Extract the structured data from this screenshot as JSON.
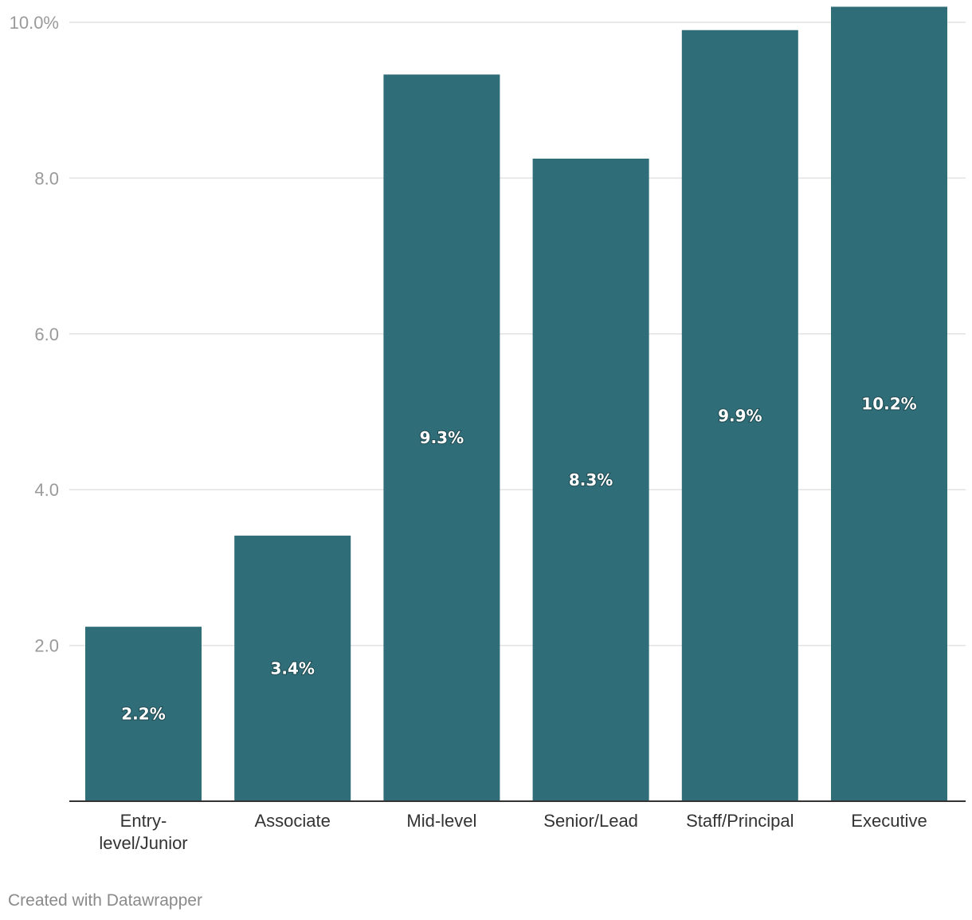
{
  "chart_data": {
    "type": "bar",
    "title": "",
    "xlabel": "",
    "ylabel": "",
    "ylim": [
      0,
      10.2
    ],
    "grid": true,
    "bar_color": "#2f6e78",
    "categories": [
      [
        "Entry-",
        "level/Junior"
      ],
      [
        "Associate"
      ],
      [
        "Mid-level"
      ],
      [
        "Senior/Lead"
      ],
      [
        "Staff/Principal"
      ],
      [
        "Executive"
      ]
    ],
    "values": [
      2.24,
      3.41,
      9.33,
      8.25,
      9.9,
      10.2
    ],
    "value_labels": [
      "2.2%",
      "3.4%",
      "9.3%",
      "8.3%",
      "9.9%",
      "10.2%"
    ],
    "y_ticks": [
      {
        "value": 2,
        "label": "2.0"
      },
      {
        "value": 4,
        "label": "4.0"
      },
      {
        "value": 6,
        "label": "6.0"
      },
      {
        "value": 8,
        "label": "8.0"
      },
      {
        "value": 10,
        "label": "10.0%"
      }
    ]
  },
  "footer": {
    "credit": "Created with Datawrapper"
  }
}
